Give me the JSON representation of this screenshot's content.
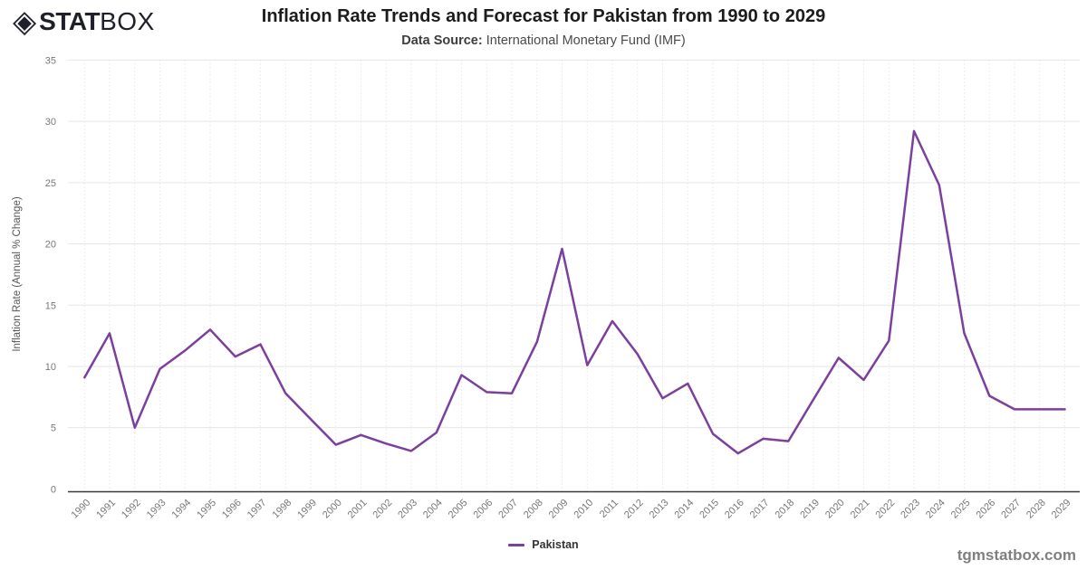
{
  "header": {
    "logo_icon": "◈",
    "logo_text_bold": "STAT",
    "logo_text_light": "BOX",
    "title": "Inflation Rate Trends and Forecast for Pakistan from 1990 to 2029",
    "subtitle_label": "Data Source:",
    "subtitle_value": " International Monetary Fund (IMF)"
  },
  "chart_data": {
    "type": "line",
    "title": "Inflation Rate Trends and Forecast for Pakistan from 1990 to 2029",
    "xlabel": "",
    "ylabel": "Inflation Rate (Annual % Change)",
    "ylim": [
      0,
      35
    ],
    "yticks": [
      0,
      5,
      10,
      15,
      20,
      25,
      30,
      35
    ],
    "grid": true,
    "legend_position": "bottom-center",
    "x": [
      1990,
      1991,
      1992,
      1993,
      1994,
      1995,
      1996,
      1997,
      1998,
      1999,
      2000,
      2001,
      2002,
      2003,
      2004,
      2005,
      2006,
      2007,
      2008,
      2009,
      2010,
      2011,
      2012,
      2013,
      2014,
      2015,
      2016,
      2017,
      2018,
      2019,
      2020,
      2021,
      2022,
      2023,
      2024,
      2025,
      2026,
      2027,
      2028,
      2029
    ],
    "series": [
      {
        "name": "Pakistan",
        "color": "#7B3F9E",
        "values": [
          9.1,
          12.7,
          5.0,
          9.8,
          11.3,
          13.0,
          10.8,
          11.8,
          7.8,
          5.7,
          3.6,
          4.4,
          3.7,
          3.1,
          4.6,
          9.3,
          7.9,
          7.8,
          12.0,
          19.6,
          10.1,
          13.7,
          11.0,
          7.4,
          8.6,
          4.5,
          2.9,
          4.1,
          3.9,
          7.3,
          10.7,
          8.9,
          12.1,
          29.2,
          24.8,
          12.7,
          7.6,
          6.5,
          6.5,
          6.5
        ]
      }
    ]
  },
  "legend": {
    "label": "Pakistan"
  },
  "footer": {
    "watermark": "tgmstatbox.com"
  },
  "colors": {
    "line": "#7B3F9E",
    "grid_major": "#e6e6e6",
    "grid_minor_dotted": "#dcdcdc",
    "axis_line": "#3a3a3a",
    "tick_label": "#777777",
    "axis_title": "#555555"
  }
}
